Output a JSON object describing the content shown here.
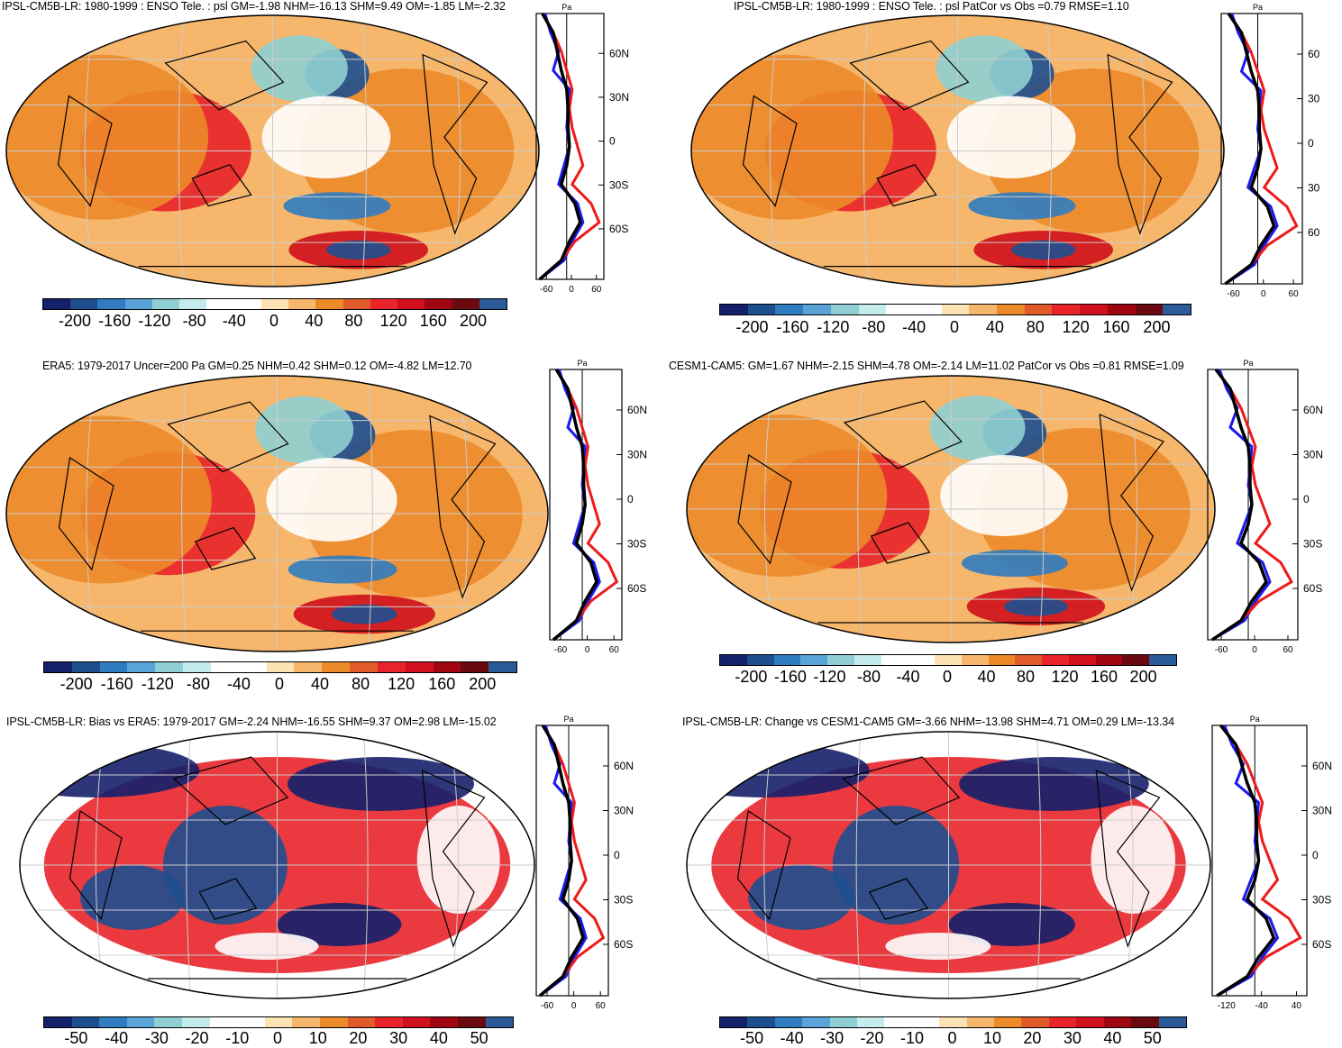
{
  "panels": [
    {
      "title": "IPSL-CM5B-LR: 1980-1999 : ENSO Tele. : psl GM=-1.98 NHM=-16.13 SHM=9.49 OM=-1.85 LM=-2.32",
      "profile_unit": "Pa",
      "lat_labels": [
        "60N",
        "30N",
        "0",
        "30S",
        "60S"
      ],
      "x_ticks": [
        "-60",
        "0",
        "60"
      ],
      "colorbar_labels": [
        "-200",
        "-160",
        "-120",
        "-80",
        "-40",
        "0",
        "40",
        "80",
        "120",
        "160",
        "200"
      ]
    },
    {
      "title": "IPSL-CM5B-LR: 1980-1999 : ENSO Tele. : psl PatCor vs Obs =0.79 RMSE=1.10",
      "profile_unit": "Pa",
      "lat_labels": [
        "60",
        "30",
        "0",
        "30",
        "60"
      ],
      "x_ticks": [
        "-60",
        "0",
        "60"
      ],
      "colorbar_labels": [
        "-200",
        "-160",
        "-120",
        "-80",
        "-40",
        "0",
        "40",
        "80",
        "120",
        "160",
        "200"
      ]
    },
    {
      "title": "ERA5: 1979-2017 Uncer=200 Pa GM=0.25 NHM=0.42 SHM=0.12 OM=-4.82 LM=12.70",
      "profile_unit": "Pa",
      "lat_labels": [
        "60N",
        "30N",
        "0",
        "30S",
        "60S"
      ],
      "x_ticks": [
        "-60",
        "0",
        "60"
      ],
      "colorbar_labels": [
        "-200",
        "-160",
        "-120",
        "-80",
        "-40",
        "0",
        "40",
        "80",
        "120",
        "160",
        "200"
      ]
    },
    {
      "title": "CESM1-CAM5: GM=1.67 NHM=-2.15 SHM=4.78 OM=-2.14 LM=11.02 PatCor vs Obs =0.81 RMSE=1.09",
      "profile_unit": "Pa",
      "lat_labels": [
        "60N",
        "30N",
        "0",
        "30S",
        "60S"
      ],
      "x_ticks": [
        "-60",
        "0",
        "60"
      ],
      "colorbar_labels": [
        "-200",
        "-160",
        "-120",
        "-80",
        "-40",
        "0",
        "40",
        "80",
        "120",
        "160",
        "200"
      ]
    },
    {
      "title": "IPSL-CM5B-LR: Bias vs ERA5: 1979-2017 GM=-2.24 NHM=-16.55 SHM=9.37 OM=2.98 LM=-15.02",
      "profile_unit": "Pa",
      "lat_labels": [
        "60N",
        "30N",
        "0",
        "30S",
        "60S"
      ],
      "x_ticks": [
        "-60",
        "0",
        "60"
      ],
      "colorbar_labels": [
        "-50",
        "-40",
        "-30",
        "-20",
        "-10",
        "0",
        "10",
        "20",
        "30",
        "40",
        "50"
      ]
    },
    {
      "title": "IPSL-CM5B-LR: Change vs CESM1-CAM5 GM=-3.66 NHM=-13.98 SHM=4.71 OM=0.29 LM=-13.34",
      "profile_unit": "Pa",
      "lat_labels": [
        "60N",
        "30N",
        "0",
        "30S",
        "60S"
      ],
      "x_ticks": [
        "-120",
        "-40",
        "40"
      ],
      "colorbar_labels": [
        "-50",
        "-40",
        "-30",
        "-20",
        "-10",
        "0",
        "10",
        "20",
        "30",
        "40",
        "50"
      ]
    }
  ],
  "colors": {
    "palette": [
      "#15206a",
      "#1d4f8f",
      "#2f7cc0",
      "#5aa3d8",
      "#8fcfd3",
      "#c4ecec",
      "#ffffff",
      "#ffffff",
      "#fde2b4",
      "#f6b66b",
      "#ec8a2a",
      "#e05a2a",
      "#e8242a",
      "#d0101c",
      "#a00612",
      "#6a0a10",
      "#2a5a98"
    ],
    "profile_blue": "#1a1aee",
    "profile_red": "#ee1a1a",
    "profile_black": "#000000"
  }
}
